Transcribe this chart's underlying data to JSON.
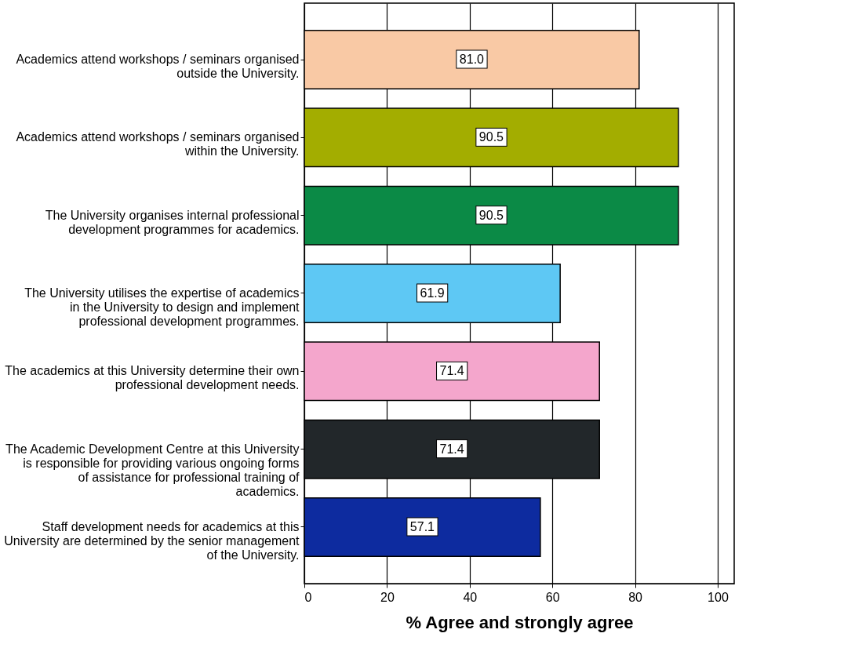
{
  "chart_data": {
    "type": "bar",
    "orientation": "horizontal",
    "xlabel": "% Agree and strongly agree",
    "categories": [
      "Academics attend workshops / seminars organised outside the University.",
      "Academics attend workshops / seminars organised within the University.",
      "The University organises internal professional development programmes for academics.",
      "The University utilises the expertise of academics in the University to design and implement professional development programmes.",
      "The academics at this University determine their own professional development needs.",
      "The Academic Development Centre at this University is responsible for providing various ongoing forms of assistance for professional training of academics.",
      "Staff development needs for academics at this University are determined by the senior management of the University."
    ],
    "values": [
      81.0,
      90.5,
      90.5,
      61.9,
      71.4,
      71.4,
      57.1
    ],
    "colors": [
      "#f9c9a5",
      "#a3ad00",
      "#0b8a46",
      "#5ec8f4",
      "#f4a6cc",
      "#22272a",
      "#0d2b9f"
    ],
    "value_labels": [
      "81.0",
      "90.5",
      "90.5",
      "61.9",
      "71.4",
      "71.4",
      "57.1"
    ],
    "xlim": [
      0,
      104
    ],
    "xticks": [
      0,
      20,
      40,
      60,
      80,
      100
    ],
    "grid": "x"
  }
}
